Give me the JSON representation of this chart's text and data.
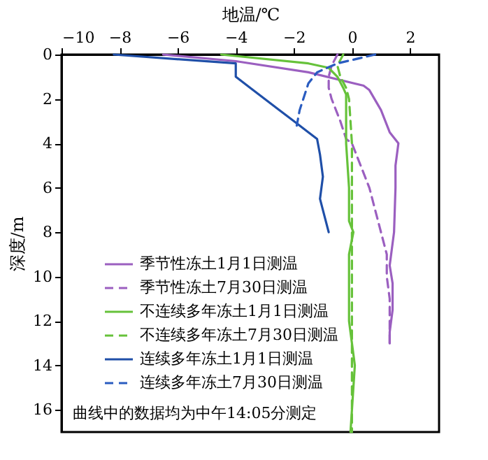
{
  "chart_data": {
    "type": "line",
    "xlabel": "地温/℃",
    "ylabel": "深度/m",
    "xlim": [
      -10,
      3
    ],
    "xticks": [
      -10,
      -8,
      -6,
      -4,
      -2,
      0,
      2
    ],
    "ylim": [
      17,
      0
    ],
    "yticks": [
      0,
      2,
      4,
      6,
      8,
      10,
      12,
      14,
      16
    ],
    "legend": "bottom left",
    "grid": false,
    "annotations": [
      "曲线中的数据均为中午14:05分测定"
    ],
    "series": [
      {
        "name": "季节性冻土1月1日测温",
        "color": "#9b5fc0",
        "line_style": "solid",
        "x": [
          -6.5,
          -4,
          -1.5,
          0.4,
          0.6,
          1,
          1.3,
          1.6,
          1.5,
          1.5,
          1.45,
          1.3,
          1.4,
          1.4,
          1.3,
          1.3
        ],
        "values": [
          0,
          0.3,
          0.8,
          1.4,
          1.6,
          2.5,
          3.5,
          4,
          5,
          6,
          8,
          9.5,
          10.3,
          11.5,
          12.5,
          13
        ]
      },
      {
        "name": "季节性冻土7月30日测温",
        "color": "#9b5fc0",
        "line_style": "dashed",
        "x": [
          -0.5,
          -0.7,
          -0.8,
          -0.8,
          -0.7,
          -0.4,
          -0.2,
          0,
          0.3,
          0.6,
          0.9,
          1.2,
          1.2,
          1.3,
          1.3,
          1.3
        ],
        "values": [
          0,
          0.5,
          1,
          1.5,
          2,
          3,
          3.8,
          4,
          5,
          6,
          7.5,
          9,
          10,
          11,
          12,
          13
        ]
      },
      {
        "name": "不连续多年冻土1月1日测温",
        "color": "#66c23a",
        "line_style": "solid",
        "x": [
          -4.5,
          -1.5,
          -0.8,
          -0.5,
          -0.3,
          -0.2,
          -0.2,
          -0.2,
          -0.1,
          -0.1,
          0.05,
          -0.1,
          -0.1,
          -0.1,
          0.1,
          0.05,
          0,
          -0.05
        ],
        "values": [
          0,
          0.4,
          0.6,
          1,
          1.5,
          1.8,
          2.5,
          4,
          6,
          7.5,
          8,
          9,
          10,
          12,
          14,
          15,
          16,
          17
        ]
      },
      {
        "name": "不连续多年冻土7月30日测温",
        "color": "#66c23a",
        "line_style": "dashed",
        "x": [
          -0.3,
          -0.5,
          -0.4,
          -0.2,
          -0.1,
          0,
          0,
          0,
          0
        ],
        "values": [
          0,
          0.5,
          1,
          1.5,
          2,
          4,
          8,
          12,
          17
        ]
      },
      {
        "name": "连续多年冻土1月1日测温",
        "color": "#1f4fa8",
        "line_style": "solid",
        "x": [
          -8.2,
          -4,
          -4,
          -3.5,
          -2.5,
          -2,
          -1.5,
          -1.2,
          -1.1,
          -1.0,
          -1.1,
          -1.0,
          -0.8
        ],
        "values": [
          0,
          0.4,
          1,
          1.5,
          2.5,
          3,
          3.5,
          3.8,
          4.5,
          5.5,
          6.5,
          7,
          8
        ]
      },
      {
        "name": "连续多年冻土7月30日测温",
        "color": "#2a5cc0",
        "line_style": "dashed",
        "x": [
          0.8,
          -0.5,
          -1.2,
          -1.5,
          -1.8,
          -1.9
        ],
        "values": [
          0,
          0.4,
          0.8,
          1.3,
          2.5,
          3.2
        ]
      }
    ]
  }
}
